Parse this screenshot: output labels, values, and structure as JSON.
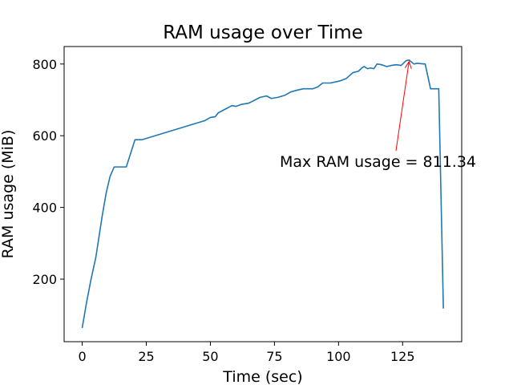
{
  "chart_data": {
    "type": "line",
    "title": "RAM usage over Time",
    "x_label": "Time (sec)",
    "y_label": "RAM usage (MiB)",
    "x": [
      0,
      1.6,
      3.4,
      5.3,
      7.8,
      9.4,
      10.9,
      12.5,
      17.2,
      20.6,
      23.4,
      47.8,
      50,
      51.9,
      53.1,
      56.3,
      58.4,
      60,
      61.9,
      65,
      67.5,
      69.4,
      71.9,
      73.8,
      76.3,
      79.1,
      81.3,
      83.8,
      86.3,
      90,
      91.9,
      93.8,
      96.9,
      100.6,
      103.1,
      105.6,
      107.8,
      109.1,
      110,
      111.3,
      112.5,
      113.8,
      115,
      116.9,
      118.8,
      120.6,
      122.5,
      124.4,
      126.3,
      127.5,
      129.4,
      130.6,
      133.8,
      135.9,
      139.1,
      140.9
    ],
    "series": [
      {
        "name": "RAM usage",
        "color": "#1f77b4",
        "values": [
          64,
          131,
          198,
          260,
          376,
          442,
          487,
          513,
          513,
          589,
          589,
          642,
          651,
          653,
          664,
          676,
          684,
          682,
          687,
          691,
          700,
          707,
          711,
          704,
          707,
          713,
          722,
          727,
          731,
          731,
          736,
          747,
          747,
          753,
          760,
          776,
          780,
          789,
          793,
          787,
          789,
          787,
          800,
          798,
          793,
          796,
          798,
          796,
          809,
          811.34,
          800,
          802,
          800,
          731,
          731,
          118
        ]
      }
    ],
    "xlim": [
      -7.05,
      148.05
    ],
    "ylim": [
      25.6,
      848.8
    ],
    "xticks": [
      0,
      25,
      50,
      75,
      100,
      125
    ],
    "yticks": [
      200,
      400,
      600,
      800
    ],
    "annotation": {
      "text": "Max RAM usage = 811.34",
      "x": 127.5,
      "y": 811.34,
      "color": "#ff0000"
    }
  }
}
